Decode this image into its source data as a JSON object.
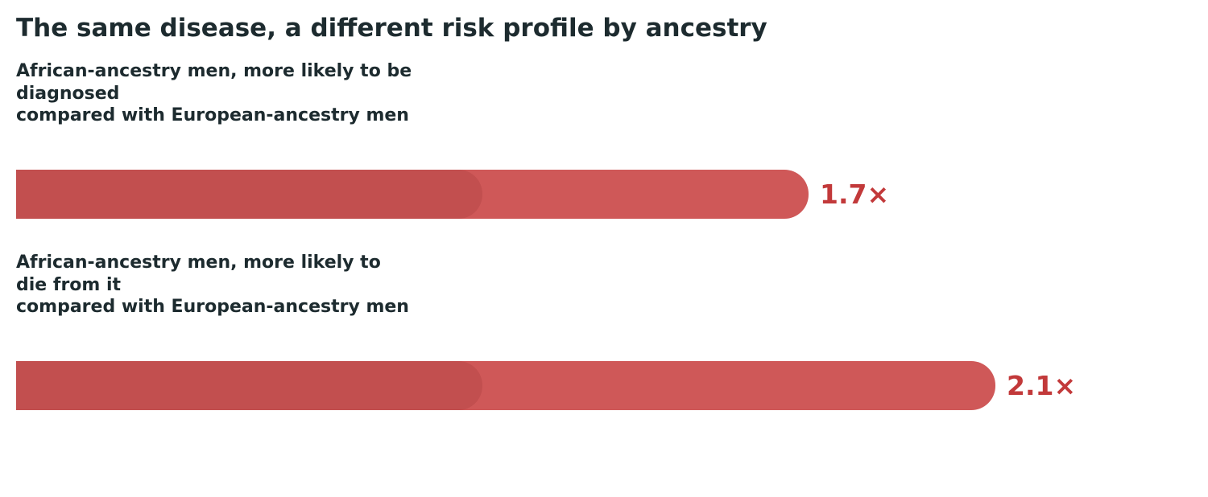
{
  "title": "The same disease, a different risk profile by ancestry",
  "colors": {
    "bar": "#cf5858",
    "baseline": "#c24f4f",
    "value": "#c2393a",
    "text": "#1d2b2f"
  },
  "chart_data": {
    "type": "bar",
    "orientation": "horizontal",
    "title": "The same disease, a different risk profile by ancestry",
    "baseline_value": 1.0,
    "rows": [
      {
        "label_lines": [
          "African-ancestry men, more likely to be",
          "diagnosed",
          "compared with European-ancestry men"
        ],
        "value": 1.7,
        "value_label": "1.7×"
      },
      {
        "label_lines": [
          "African-ancestry men, more likely to",
          "die from it",
          "compared with European-ancestry men"
        ],
        "value": 2.1,
        "value_label": "2.1×"
      }
    ]
  }
}
